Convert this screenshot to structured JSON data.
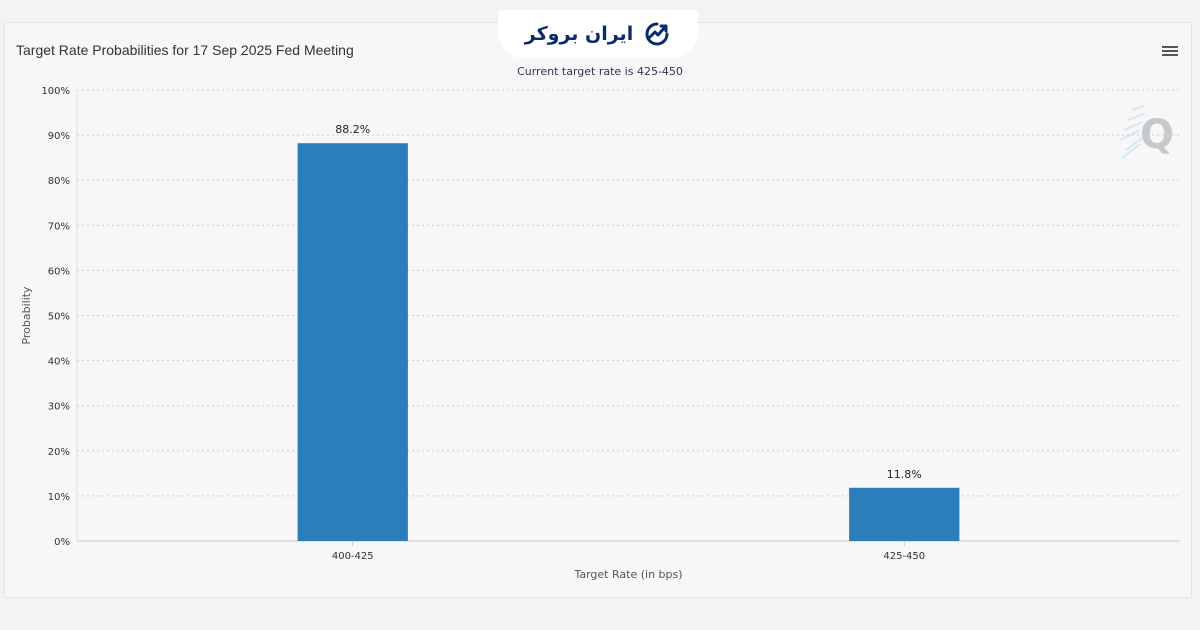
{
  "page": {
    "logo_text": "ایران بروکر",
    "logo_icon": "chart-trend-icon",
    "watermark_letter": "Q",
    "menu_icon": "hamburger-icon"
  },
  "chart_data": {
    "type": "bar",
    "title": "Target Rate Probabilities for 17 Sep 2025 Fed Meeting",
    "subtitle": "Current target rate is 425-450",
    "categories": [
      "400-425",
      "425-450"
    ],
    "values": [
      88.2,
      11.8
    ],
    "data_labels": [
      "88.2%",
      "11.8%"
    ],
    "xlabel": "Target Rate (in bps)",
    "ylabel": "Probability",
    "ylim": [
      0,
      100
    ],
    "yticks": [
      0,
      10,
      20,
      30,
      40,
      50,
      60,
      70,
      80,
      90,
      100
    ],
    "ytick_labels": [
      "0%",
      "10%",
      "20%",
      "30%",
      "40%",
      "50%",
      "60%",
      "70%",
      "80%",
      "90%",
      "100%"
    ],
    "bar_color": "#2a7fba",
    "grid": true
  }
}
